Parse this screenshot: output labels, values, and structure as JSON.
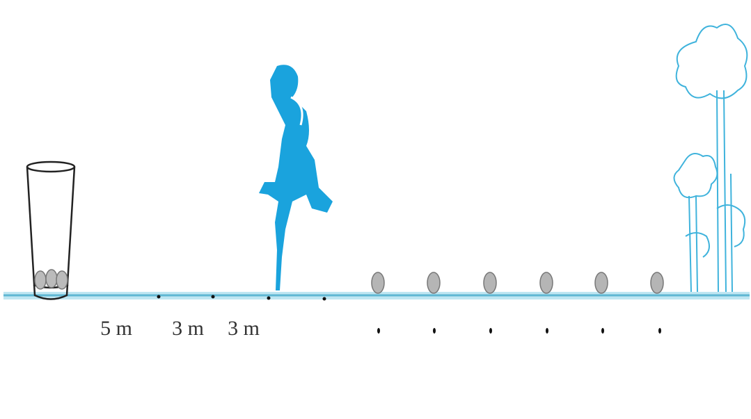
{
  "labels": [
    "5 m",
    "3 m",
    "3 m"
  ]
}
